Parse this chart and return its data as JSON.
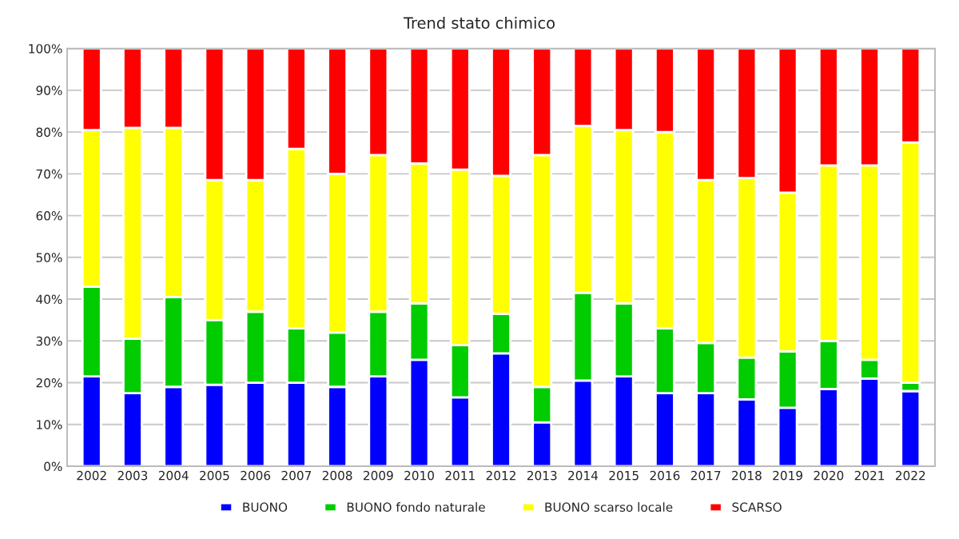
{
  "chart_data": {
    "type": "bar",
    "title": "Trend stato chimico",
    "stacked": true,
    "categories": [
      "2002",
      "2003",
      "2004",
      "2005",
      "2006",
      "2007",
      "2008",
      "2009",
      "2010",
      "2011",
      "2012",
      "2013",
      "2014",
      "2015",
      "2016",
      "2017",
      "2018",
      "2019",
      "2020",
      "2021",
      "2022"
    ],
    "series": [
      {
        "name": "BUONO",
        "color": "#0000ff",
        "values": [
          21.5,
          17.5,
          19,
          19.5,
          20,
          20,
          19,
          21.5,
          25.5,
          16.5,
          27,
          10.5,
          20.5,
          21.5,
          17.5,
          17.5,
          16,
          14,
          18.5,
          21,
          18
        ]
      },
      {
        "name": "BUONO fondo naturale",
        "color": "#00cc00",
        "values": [
          21.5,
          13,
          21.5,
          15.5,
          17,
          13,
          13,
          15.5,
          13.5,
          12.5,
          9.5,
          8.5,
          21,
          17.5,
          15.5,
          12,
          10,
          13.5,
          11.5,
          4.5,
          2
        ]
      },
      {
        "name": "BUONO scarso locale",
        "color": "#ffff00",
        "values": [
          37.5,
          50.5,
          40.5,
          33.5,
          31.5,
          43,
          38,
          37.5,
          33.5,
          42,
          33,
          55.5,
          40,
          41.5,
          47,
          39,
          43,
          38,
          42,
          46.5,
          57.5
        ]
      },
      {
        "name": "SCARSO",
        "color": "#ff0000",
        "values": [
          19.5,
          19,
          19,
          31.5,
          31.5,
          24,
          30,
          25.5,
          27.5,
          29,
          30.5,
          25.5,
          18.5,
          19.5,
          20,
          31.5,
          31,
          34.5,
          28,
          28,
          22.5
        ]
      }
    ],
    "ylim": [
      0,
      100
    ],
    "yticks": [
      {
        "value": 0,
        "label": "0%"
      },
      {
        "value": 10,
        "label": "10%"
      },
      {
        "value": 20,
        "label": "20%"
      },
      {
        "value": 30,
        "label": "30%"
      },
      {
        "value": 40,
        "label": "40%"
      },
      {
        "value": 50,
        "label": "50%"
      },
      {
        "value": 60,
        "label": "60%"
      },
      {
        "value": 70,
        "label": "70%"
      },
      {
        "value": 80,
        "label": "80%"
      },
      {
        "value": 90,
        "label": "90%"
      },
      {
        "value": 100,
        "label": "100%"
      }
    ],
    "grid": "y",
    "legend": "bottom"
  }
}
